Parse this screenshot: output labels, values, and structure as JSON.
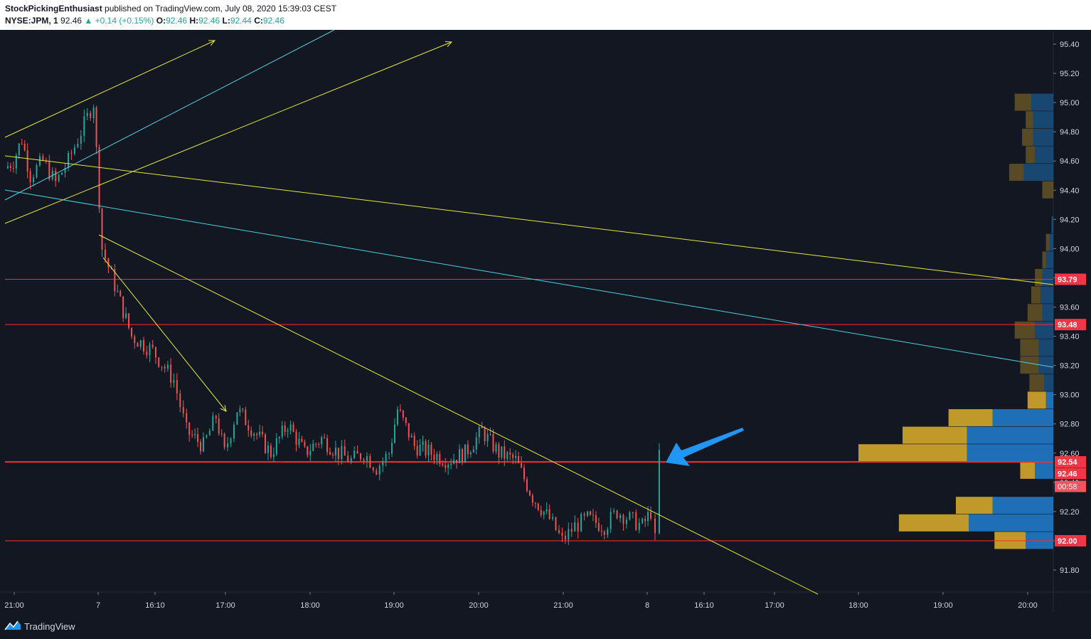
{
  "header": {
    "author": "StockPickingEnthusiast",
    "published": "published on TradingView.com, July 08, 2020 15:39:03 CEST",
    "symbol": "NYSE:JPM, 1",
    "last": "92.46",
    "change_arrow": "▲",
    "change": "+0.14 (+0.15%)",
    "o_label": "O:",
    "o": "92.46",
    "h_label": "H:",
    "h": "92.46",
    "l_label": "L:",
    "l": "92.44",
    "c_label": "C:",
    "c": "92.46"
  },
  "footer": {
    "brand": "TradingView",
    "logo_icon": "tradingview-logo-icon"
  },
  "colors": {
    "background": "#131722",
    "up": "#26a69a",
    "down": "#ef5350",
    "trendline_yellow": "#e6e63c",
    "trendline_cyan": "#4dd0e1",
    "level_red": "#ff2b2b",
    "arrow_blue": "#2196f3",
    "vp_up": "#1e6fb5",
    "vp_down": "#c1982a"
  },
  "chart_data": {
    "type": "candlestick",
    "symbol": "NYSE:JPM",
    "interval": "1",
    "ylim": [
      91.65,
      95.5
    ],
    "y_ticks": [
      "95.40",
      "95.20",
      "95.00",
      "94.80",
      "94.60",
      "94.40",
      "94.20",
      "94.00",
      "93.80",
      "93.60",
      "93.40",
      "93.20",
      "93.00",
      "92.80",
      "92.60",
      "92.40",
      "92.20",
      "92.00",
      "91.80"
    ],
    "x_ticks": [
      "21:00",
      "7",
      "16:10",
      "17:00",
      "18:00",
      "19:00",
      "20:00",
      "21:00",
      "8",
      "16:10",
      "17:00",
      "18:00",
      "19:00",
      "20:00"
    ],
    "grid": false,
    "horizontal_levels": [
      {
        "label": "93.79",
        "value": 93.79
      },
      {
        "label": "93.48",
        "value": 93.48
      },
      {
        "label": "92.54",
        "value": 92.54
      },
      {
        "label": "92.00",
        "value": 92.0
      }
    ],
    "last_price_label": "92.46",
    "countdown_label": "00:58",
    "price_path": [
      [
        0,
        94.55
      ],
      [
        0.1,
        94.6
      ],
      [
        0.2,
        94.75
      ],
      [
        0.3,
        94.5
      ],
      [
        0.45,
        94.6
      ],
      [
        0.6,
        94.45
      ],
      [
        0.75,
        94.6
      ],
      [
        0.9,
        94.8
      ],
      [
        1.05,
        95.0
      ],
      [
        1.15,
        94.0
      ],
      [
        1.3,
        93.75
      ],
      [
        1.5,
        93.4
      ],
      [
        1.75,
        93.3
      ],
      [
        2.0,
        93.1
      ],
      [
        2.15,
        92.75
      ],
      [
        2.35,
        92.65
      ],
      [
        2.5,
        92.85
      ],
      [
        2.6,
        92.6
      ],
      [
        2.75,
        92.9
      ],
      [
        2.95,
        92.75
      ],
      [
        3.15,
        92.6
      ],
      [
        3.35,
        92.8
      ],
      [
        3.55,
        92.6
      ],
      [
        3.75,
        92.7
      ],
      [
        3.95,
        92.6
      ],
      [
        4.1,
        92.55
      ],
      [
        4.25,
        92.6
      ],
      [
        4.4,
        92.5
      ],
      [
        4.55,
        92.6
      ],
      [
        4.65,
        92.9
      ],
      [
        4.85,
        92.65
      ],
      [
        5.05,
        92.6
      ],
      [
        5.25,
        92.55
      ],
      [
        5.45,
        92.6
      ],
      [
        5.65,
        92.75
      ],
      [
        5.85,
        92.6
      ],
      [
        6.05,
        92.55
      ],
      [
        6.25,
        92.3
      ],
      [
        6.45,
        92.15
      ],
      [
        6.6,
        92.0
      ],
      [
        6.75,
        92.1
      ],
      [
        6.9,
        92.15
      ],
      [
        7.1,
        92.1
      ],
      [
        7.25,
        92.2
      ],
      [
        7.4,
        92.15
      ],
      [
        7.55,
        92.1
      ],
      [
        7.65,
        92.2
      ],
      [
        7.7,
        92.0
      ],
      [
        7.75,
        92.6
      ],
      [
        7.8,
        92.05
      ],
      [
        7.83,
        92.46
      ]
    ],
    "volume_profile": [
      {
        "price": 95.0,
        "up": 0.12,
        "down": 0.09
      },
      {
        "price": 94.88,
        "up": 0.11,
        "down": 0.04
      },
      {
        "price": 94.76,
        "up": 0.11,
        "down": 0.06
      },
      {
        "price": 94.64,
        "up": 0.1,
        "down": 0.05
      },
      {
        "price": 94.52,
        "up": 0.16,
        "down": 0.08
      },
      {
        "price": 94.4,
        "up": 0.0,
        "down": 0.06
      },
      {
        "price": 94.16,
        "up": 0.01,
        "down": 0.0
      },
      {
        "price": 94.04,
        "up": 0.02,
        "down": 0.02
      },
      {
        "price": 93.92,
        "up": 0.04,
        "down": 0.02
      },
      {
        "price": 93.8,
        "up": 0.06,
        "down": 0.04
      },
      {
        "price": 93.68,
        "up": 0.07,
        "down": 0.05
      },
      {
        "price": 93.56,
        "up": 0.06,
        "down": 0.08
      },
      {
        "price": 93.44,
        "up": 0.1,
        "down": 0.11
      },
      {
        "price": 93.32,
        "up": 0.08,
        "down": 0.1
      },
      {
        "price": 93.2,
        "up": 0.08,
        "down": 0.1
      },
      {
        "price": 93.08,
        "up": 0.05,
        "down": 0.08
      },
      {
        "price": 92.96,
        "up": 0.04,
        "down": 0.1
      },
      {
        "price": 92.84,
        "up": 0.33,
        "down": 0.24
      },
      {
        "price": 92.72,
        "up": 0.47,
        "down": 0.35
      },
      {
        "price": 92.6,
        "up": 0.47,
        "down": 0.59
      },
      {
        "price": 92.48,
        "up": 0.1,
        "down": 0.08
      },
      {
        "price": 92.36,
        "up": 0.0,
        "down": 0.0
      },
      {
        "price": 92.24,
        "up": 0.33,
        "down": 0.2
      },
      {
        "price": 92.12,
        "up": 0.46,
        "down": 0.38
      },
      {
        "price": 92.0,
        "up": 0.15,
        "down": 0.17
      }
    ]
  }
}
